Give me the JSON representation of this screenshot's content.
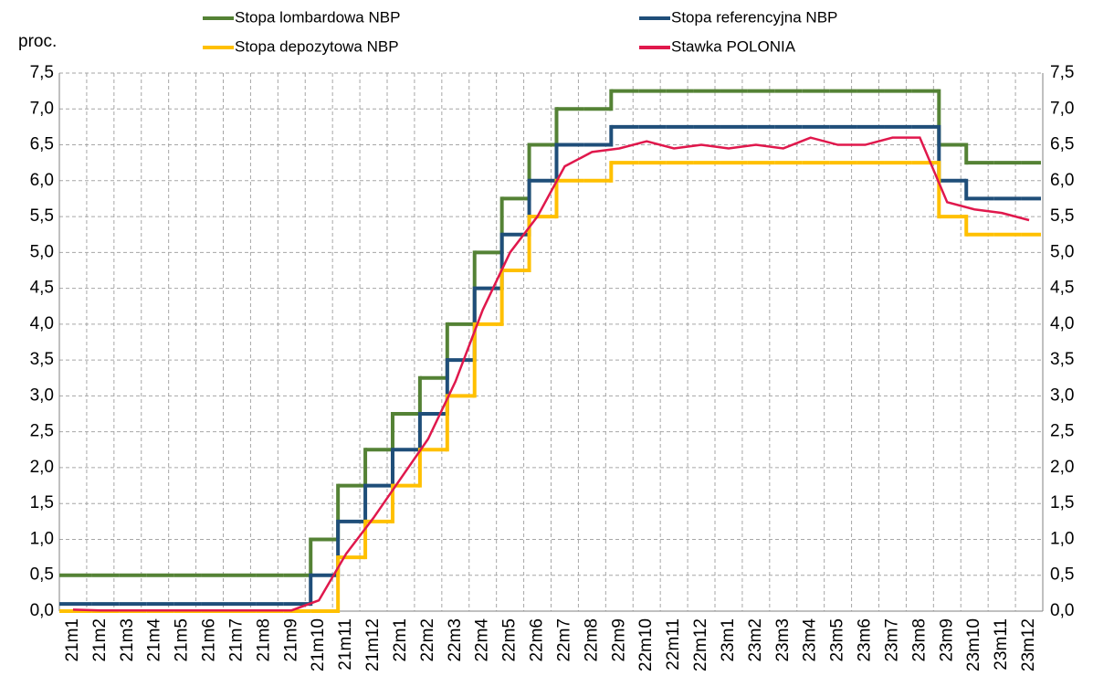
{
  "chart_data": {
    "type": "line",
    "y_axis_label": "proc.",
    "categories": [
      "21m1",
      "21m2",
      "21m3",
      "21m4",
      "21m5",
      "21m6",
      "21m7",
      "21m8",
      "21m9",
      "21m10",
      "21m11",
      "21m12",
      "22m1",
      "22m2",
      "22m3",
      "22m4",
      "22m5",
      "22m6",
      "22m7",
      "22m8",
      "22m9",
      "22m10",
      "22m11",
      "22m12",
      "23m1",
      "23m2",
      "23m3",
      "23m4",
      "23m5",
      "23m6",
      "23m7",
      "23m8",
      "23m9",
      "23m10",
      "23m11",
      "23m12"
    ],
    "ylim": [
      0,
      7.5
    ],
    "yticks": [
      {
        "value": 0,
        "label": "0,0"
      },
      {
        "value": 0.5,
        "label": "0,5"
      },
      {
        "value": 1,
        "label": "1,0"
      },
      {
        "value": 1.5,
        "label": "1,5"
      },
      {
        "value": 2,
        "label": "2,0"
      },
      {
        "value": 2.5,
        "label": "2,5"
      },
      {
        "value": 3,
        "label": "3,0"
      },
      {
        "value": 3.5,
        "label": "3,5"
      },
      {
        "value": 4,
        "label": "4,0"
      },
      {
        "value": 4.5,
        "label": "4,5"
      },
      {
        "value": 5,
        "label": "5,0"
      },
      {
        "value": 5.5,
        "label": "5,5"
      },
      {
        "value": 6,
        "label": "6,0"
      },
      {
        "value": 6.5,
        "label": "6,5"
      },
      {
        "value": 7,
        "label": "7,0"
      },
      {
        "value": 7.5,
        "label": "7,5"
      }
    ],
    "grid": true,
    "series": [
      {
        "name": "Stopa lombardowa NBP",
        "color": "#548235",
        "step": true,
        "values": [
          0.5,
          0.5,
          0.5,
          0.5,
          0.5,
          0.5,
          0.5,
          0.5,
          0.5,
          1.0,
          1.75,
          2.25,
          2.75,
          3.25,
          4.0,
          5.0,
          5.75,
          6.5,
          7.0,
          7.0,
          7.25,
          7.25,
          7.25,
          7.25,
          7.25,
          7.25,
          7.25,
          7.25,
          7.25,
          7.25,
          7.25,
          7.25,
          6.5,
          6.25,
          6.25,
          6.25
        ]
      },
      {
        "name": "Stopa referencyjna NBP",
        "color": "#1f4e79",
        "step": true,
        "values": [
          0.1,
          0.1,
          0.1,
          0.1,
          0.1,
          0.1,
          0.1,
          0.1,
          0.1,
          0.5,
          1.25,
          1.75,
          2.25,
          2.75,
          3.5,
          4.5,
          5.25,
          6.0,
          6.5,
          6.5,
          6.75,
          6.75,
          6.75,
          6.75,
          6.75,
          6.75,
          6.75,
          6.75,
          6.75,
          6.75,
          6.75,
          6.75,
          6.0,
          5.75,
          5.75,
          5.75
        ]
      },
      {
        "name": "Stopa depozytowa NBP",
        "color": "#ffc000",
        "step": true,
        "values": [
          0,
          0,
          0,
          0,
          0,
          0,
          0,
          0,
          0,
          0,
          0.75,
          1.25,
          1.75,
          2.25,
          3.0,
          4.0,
          4.75,
          5.5,
          6.0,
          6.0,
          6.25,
          6.25,
          6.25,
          6.25,
          6.25,
          6.25,
          6.25,
          6.25,
          6.25,
          6.25,
          6.25,
          6.25,
          5.5,
          5.25,
          5.25,
          5.25
        ]
      },
      {
        "name": "Stawka POLONIA",
        "color": "#e0184c",
        "step": false,
        "values": [
          0.02,
          0.01,
          0.01,
          0.01,
          0.01,
          0.01,
          0.01,
          0.01,
          0.01,
          0.15,
          0.8,
          1.3,
          1.85,
          2.4,
          3.2,
          4.2,
          5.0,
          5.5,
          6.2,
          6.4,
          6.45,
          6.55,
          6.45,
          6.5,
          6.45,
          6.5,
          6.45,
          6.6,
          6.5,
          6.5,
          6.6,
          6.6,
          5.7,
          5.6,
          5.55,
          5.45
        ]
      }
    ]
  }
}
